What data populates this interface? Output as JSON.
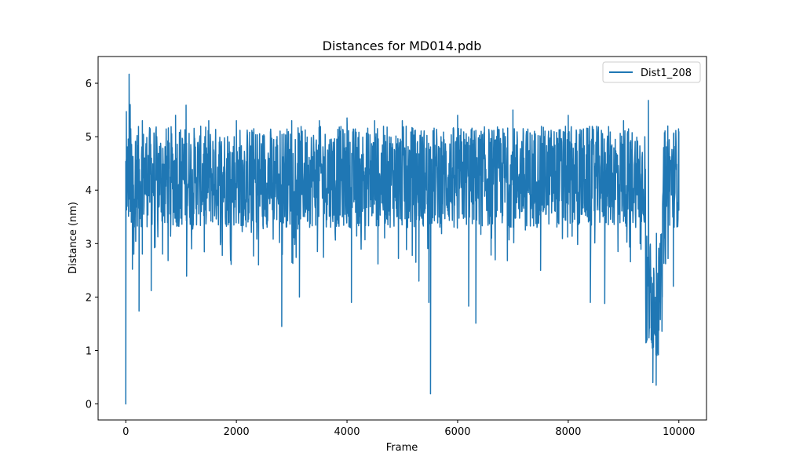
{
  "chart_data": {
    "type": "line",
    "title": "Distances for MD014.pdb",
    "xlabel": "Frame",
    "ylabel": "Distance (nm)",
    "xlim": [
      -500,
      10500
    ],
    "ylim": [
      -0.3,
      6.5
    ],
    "xticks": [
      0,
      2000,
      4000,
      6000,
      8000,
      10000
    ],
    "yticks": [
      0,
      1,
      2,
      3,
      4,
      5,
      6
    ],
    "grid": false,
    "legend": "top-right",
    "colors": {
      "series": "#1f77b4",
      "axes": "#000000",
      "background": "#ffffff"
    },
    "series": [
      {
        "name": "Dist1_208",
        "x_range": [
          0,
          10000
        ],
        "sampled": [
          [
            0,
            0.0
          ],
          [
            10,
            5.47
          ],
          [
            30,
            4.2
          ],
          [
            60,
            6.17
          ],
          [
            80,
            5.6
          ],
          [
            100,
            3.4
          ],
          [
            120,
            2.52
          ],
          [
            200,
            4.9
          ],
          [
            240,
            1.74
          ],
          [
            300,
            5.3
          ],
          [
            460,
            2.12
          ],
          [
            900,
            5.4
          ],
          [
            1090,
            5.59
          ],
          [
            1100,
            2.39
          ],
          [
            1500,
            5.3
          ],
          [
            2000,
            5.3
          ],
          [
            2400,
            2.6
          ],
          [
            2820,
            1.45
          ],
          [
            3000,
            5.3
          ],
          [
            3140,
            2.0
          ],
          [
            3500,
            5.3
          ],
          [
            4000,
            5.35
          ],
          [
            4080,
            1.9
          ],
          [
            4500,
            5.3
          ],
          [
            5000,
            5.3
          ],
          [
            5300,
            2.3
          ],
          [
            5480,
            1.9
          ],
          [
            5510,
            0.19
          ],
          [
            6000,
            5.4
          ],
          [
            6200,
            1.83
          ],
          [
            6330,
            1.51
          ],
          [
            7000,
            5.5
          ],
          [
            7500,
            2.5
          ],
          [
            8000,
            5.4
          ],
          [
            8400,
            1.9
          ],
          [
            8660,
            1.88
          ],
          [
            9000,
            5.3
          ],
          [
            9300,
            3.0
          ],
          [
            9400,
            2.0
          ],
          [
            9450,
            5.68
          ],
          [
            9500,
            1.2
          ],
          [
            9530,
            0.4
          ],
          [
            9590,
            0.35
          ],
          [
            9620,
            0.95
          ],
          [
            9700,
            2.0
          ],
          [
            9800,
            5.2
          ],
          [
            9900,
            2.2
          ],
          [
            10000,
            5.1
          ]
        ],
        "typical_band": [
          3.3,
          5.2
        ],
        "mean": 4.3
      }
    ]
  }
}
